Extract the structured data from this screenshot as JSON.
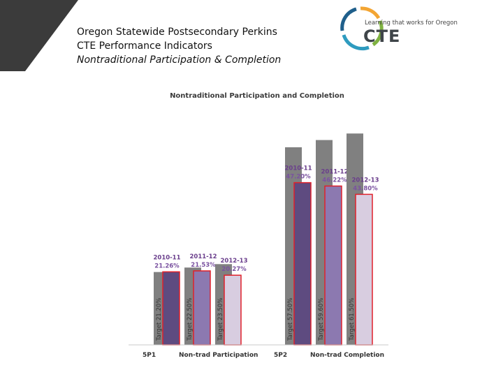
{
  "slide": {
    "title_line1": "Oregon Statewide Postsecondary Perkins",
    "title_line2": "CTE Performance Indicators",
    "title_line3": "Nontraditional Participation & Completion"
  },
  "logo": {
    "tagline": "Learning that works for Oregon",
    "wordmark": "CTE",
    "colors": [
      "#f3a533",
      "#7fb241",
      "#2e9bbf",
      "#1f5f8b"
    ]
  },
  "chart_data": {
    "type": "bar",
    "title": "Nontraditional Participation and Completion",
    "ylim": [
      0,
      65
    ],
    "grid": false,
    "groups": [
      {
        "code": "5P1",
        "name": "Non-trad Participation",
        "bars": [
          {
            "year": "2010-11",
            "value": 21.26,
            "label": "21.26%",
            "target": 21.2,
            "target_label": "Target  21.20%"
          },
          {
            "year": "2011-12",
            "value": 21.53,
            "label": "21.53%",
            "target": 22.5,
            "target_label": "Target 22.50%"
          },
          {
            "year": "2012-13",
            "value": 20.27,
            "label": "20.27%",
            "target": 23.5,
            "target_label": "Target 23.50%"
          }
        ]
      },
      {
        "code": "5P2",
        "name": "Non-trad Completion",
        "bars": [
          {
            "year": "2010-11",
            "value": 47.2,
            "label": "47.20%",
            "target": 57.5,
            "target_label": "Target  57.50%"
          },
          {
            "year": "2011-12",
            "value": 46.22,
            "label": "46.22%",
            "target": 59.6,
            "target_label": "Target 59.60%"
          },
          {
            "year": "2012-13",
            "value": 43.8,
            "label": "43.80%",
            "target": 61.5,
            "target_label": "Target 61.50%"
          }
        ]
      }
    ],
    "colors": {
      "target": "#808080",
      "actual": [
        "#5e4b80",
        "#8c79b0",
        "#d8cde0"
      ],
      "outline": "#e0202a",
      "year_label": "#6a3e8c",
      "value_label": "#7a52a0"
    }
  }
}
